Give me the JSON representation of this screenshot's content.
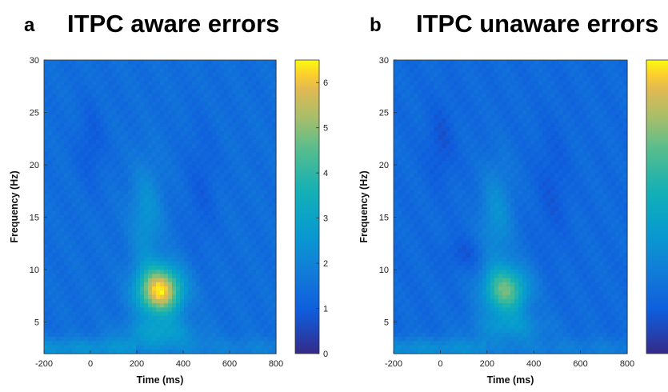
{
  "panels": [
    {
      "letter": "a",
      "title": "ITPC aware errors",
      "colorbar_ticks": [
        "0",
        "1",
        "2",
        "3",
        "4",
        "5",
        "6"
      ],
      "peak": 6.3
    },
    {
      "letter": "b",
      "title": "ITPC unaware errors",
      "colorbar_ticks": [],
      "peak": 4.6
    }
  ],
  "chart_data": [
    {
      "type": "heatmap",
      "title": "ITPC aware errors",
      "xlabel": "Time (ms)",
      "ylabel": "Frequency (Hz)",
      "xlim": [
        -200,
        800
      ],
      "ylim": [
        2,
        30
      ],
      "x_ticks": [
        "-200",
        "0",
        "200",
        "400",
        "600",
        "800"
      ],
      "y_ticks": [
        "5",
        "10",
        "15",
        "20",
        "25",
        "30"
      ],
      "clim": [
        0,
        6.5
      ],
      "colormap": "parula",
      "colorbar_ticks": [
        0,
        1,
        2,
        3,
        4,
        5,
        6
      ],
      "features": [
        {
          "feature": "peak",
          "time_ms": 300,
          "freq_hz": 8,
          "value": 6.3
        },
        {
          "feature": "low-frequency band",
          "time_ms": 300,
          "freq_hz": 4,
          "value": 3.8
        },
        {
          "feature": "background",
          "value": 1.4
        }
      ]
    },
    {
      "type": "heatmap",
      "title": "ITPC unaware errors",
      "xlabel": "Time (ms)",
      "ylabel": "Frequency (Hz)",
      "xlim": [
        -200,
        800
      ],
      "ylim": [
        2,
        30
      ],
      "x_ticks": [
        "-200",
        "0",
        "200",
        "400",
        "600",
        "800"
      ],
      "y_ticks": [
        "5",
        "10",
        "15",
        "20",
        "25",
        "30"
      ],
      "clim": [
        0,
        6.5
      ],
      "colormap": "parula",
      "features": [
        {
          "feature": "peak",
          "time_ms": 280,
          "freq_hz": 8,
          "value": 4.6
        },
        {
          "feature": "low-frequency band",
          "time_ms": 300,
          "freq_hz": 4.5,
          "value": 3.3
        },
        {
          "feature": "background",
          "value": 1.3
        }
      ]
    }
  ]
}
